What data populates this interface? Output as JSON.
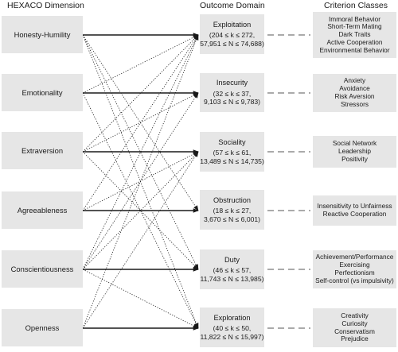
{
  "headers": {
    "hexaco": "HEXACO Dimension",
    "outcome": "Outcome Domain",
    "criterion": "Criterion Classes"
  },
  "hexaco": [
    "Honesty-Humility",
    "Emotionality",
    "Extraversion",
    "Agreeableness",
    "Conscientiousness",
    "Openness"
  ],
  "outcomes": [
    {
      "title": "Exploitation",
      "line1": "(204 ≤ k ≤ 272,",
      "line2": "57,951 ≤ N ≤ 74,688)"
    },
    {
      "title": "Insecurity",
      "line1": "(32 ≤ k ≤ 37,",
      "line2": "9,103 ≤ N ≤ 9,783)"
    },
    {
      "title": "Sociality",
      "line1": "(57 ≤ k ≤ 61,",
      "line2": "13,489 ≤ N ≤ 14,735)"
    },
    {
      "title": "Obstruction",
      "line1": "(18 ≤ k ≤ 27,",
      "line2": "3,670 ≤ N ≤ 6,001)"
    },
    {
      "title": "Duty",
      "line1": "(46 ≤ k ≤ 57,",
      "line2": "11,743 ≤ N ≤ 13,985)"
    },
    {
      "title": "Exploration",
      "line1": "(40 ≤ k ≤ 50,",
      "line2": "11,822 ≤ N ≤ 15,997)"
    }
  ],
  "criteria": [
    [
      "Immoral Behavior",
      "Short-Term Mating",
      "Dark Traits",
      "Active Cooperation",
      "Environmental Behavior"
    ],
    [
      "Anxiety",
      "Avoidance",
      "Risk Aversion",
      "Stressors"
    ],
    [
      "Social Network",
      "Leadership",
      "Positivity"
    ],
    [
      "Insensitivity to Unfairness",
      "Reactive Cooperation"
    ],
    [
      "Achievement/Performance",
      "Exercising",
      "Perfectionism",
      "Self-control (vs impulsivity)"
    ],
    [
      "Creativity",
      "Curiosity",
      "Conservatism",
      "Prejudice"
    ]
  ],
  "links": [
    {
      "from": 0,
      "to": 0,
      "type": "solid"
    },
    {
      "from": 1,
      "to": 1,
      "type": "solid"
    },
    {
      "from": 2,
      "to": 2,
      "type": "solid"
    },
    {
      "from": 3,
      "to": 3,
      "type": "solid"
    },
    {
      "from": 4,
      "to": 4,
      "type": "solid"
    },
    {
      "from": 5,
      "to": 5,
      "type": "solid"
    },
    {
      "from": 0,
      "to": 3,
      "type": "dotted"
    },
    {
      "from": 0,
      "to": 4,
      "type": "dotted"
    },
    {
      "from": 0,
      "to": 5,
      "type": "dotted"
    },
    {
      "from": 1,
      "to": 0,
      "type": "dotted"
    },
    {
      "from": 1,
      "to": 5,
      "type": "dotted"
    },
    {
      "from": 2,
      "to": 0,
      "type": "dotted"
    },
    {
      "from": 2,
      "to": 1,
      "type": "dotted"
    },
    {
      "from": 2,
      "to": 4,
      "type": "dotted"
    },
    {
      "from": 3,
      "to": 0,
      "type": "dotted"
    },
    {
      "from": 3,
      "to": 2,
      "type": "dotted"
    },
    {
      "from": 4,
      "to": 0,
      "type": "dotted"
    },
    {
      "from": 4,
      "to": 1,
      "type": "dotted"
    },
    {
      "from": 4,
      "to": 2,
      "type": "dotted"
    },
    {
      "from": 4,
      "to": 5,
      "type": "dotted"
    },
    {
      "from": 5,
      "to": 0,
      "type": "dotted"
    },
    {
      "from": 5,
      "to": 2,
      "type": "dotted"
    }
  ]
}
